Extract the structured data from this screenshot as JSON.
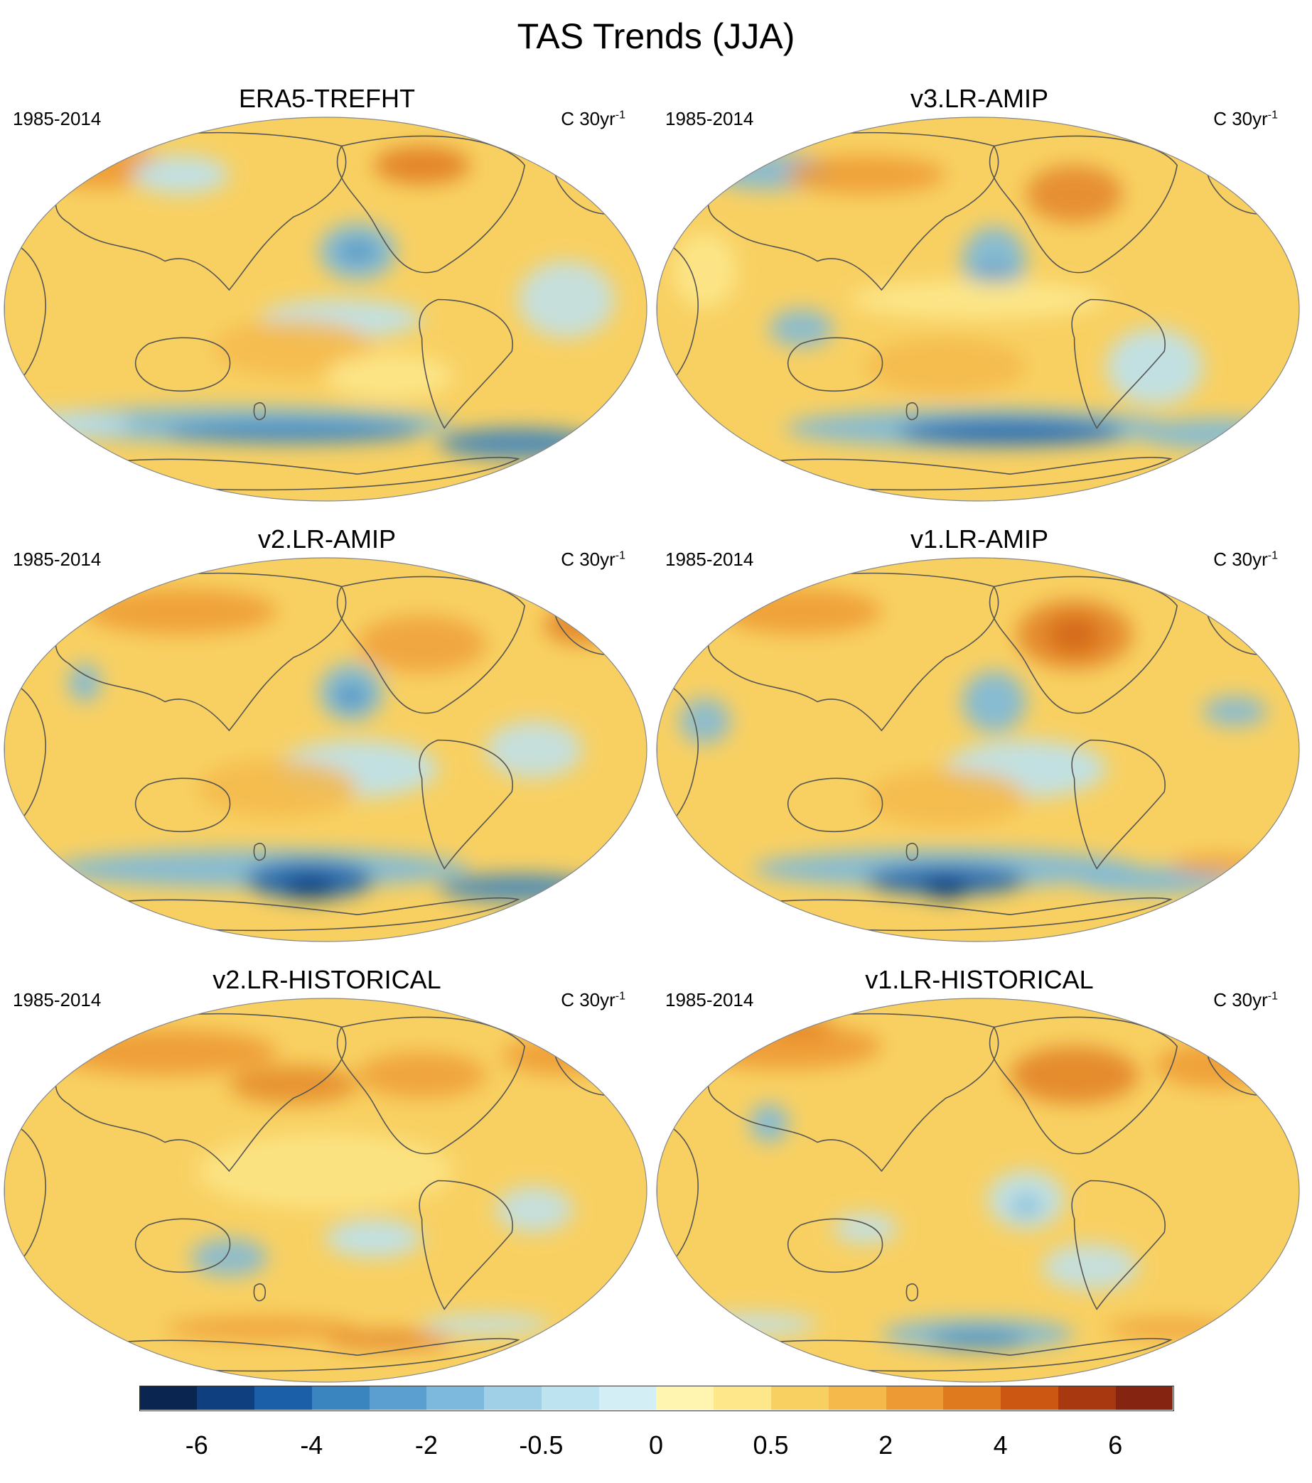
{
  "title": "TAS Trends (JJA)",
  "panels": [
    {
      "title": "ERA5-TREFHT",
      "period": "1985-2014",
      "units": "C 30yr",
      "units_sup": "-1"
    },
    {
      "title": "v3.LR-AMIP",
      "period": "1985-2014",
      "units": "C 30yr",
      "units_sup": "-1"
    },
    {
      "title": "v2.LR-AMIP",
      "period": "1985-2014",
      "units": "C 30yr",
      "units_sup": "-1"
    },
    {
      "title": "v1.LR-AMIP",
      "period": "1985-2014",
      "units": "C 30yr",
      "units_sup": "-1"
    },
    {
      "title": "v2.LR-HISTORICAL",
      "period": "1985-2014",
      "units": "C 30yr",
      "units_sup": "-1"
    },
    {
      "title": "v1.LR-HISTORICAL",
      "period": "1985-2014",
      "units": "C 30yr",
      "units_sup": "-1"
    }
  ],
  "colorbar": {
    "colors": [
      "#0a2550",
      "#0f3f7e",
      "#1a5fa8",
      "#3a84c0",
      "#5a9fd0",
      "#7cb9dd",
      "#9fd0e8",
      "#bde2f0",
      "#d4eef6",
      "#fff5b0",
      "#fde78a",
      "#f8d062",
      "#f5b84a",
      "#ee9a34",
      "#e07a1f",
      "#cc5712",
      "#a8380f",
      "#852410"
    ],
    "labels": [
      "-6",
      "-4",
      "-2",
      "-0.5",
      "0",
      "0.5",
      "2",
      "4",
      "6"
    ]
  },
  "map_colors": {
    "ocean_base": "#f8d062",
    "warm_light": "#fde78a",
    "warm": "#f5b84a",
    "warm_strong": "#ee9a34",
    "hot": "#e07a1f",
    "cool_light": "#bde2f0",
    "cool": "#7cb9dd",
    "cold": "#3a84c0",
    "colder": "#1a5fa8",
    "coast": "#555555"
  }
}
